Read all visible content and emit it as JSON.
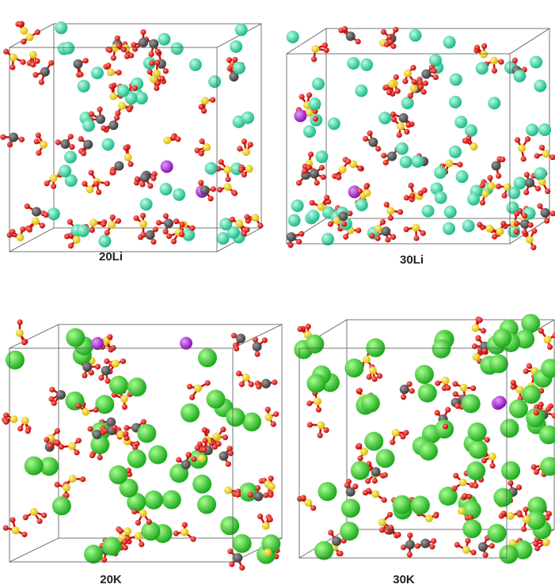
{
  "panels": [
    {
      "label": "20Li"
    },
    {
      "label": "30Li"
    },
    {
      "label": "20K"
    },
    {
      "label": "30K"
    }
  ]
}
